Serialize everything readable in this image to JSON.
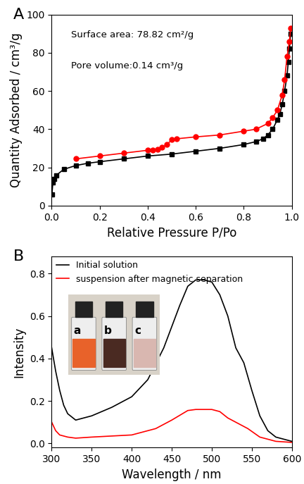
{
  "chart_data": [
    {
      "type": "line",
      "title": "A",
      "x_label": "Relative Pressure P/Po",
      "y_label": "Quantity Adsorbed / cm³/g",
      "annotations": [
        "Surface area: 78.82 cm²/g",
        "Pore volume:0.14 cm³/g"
      ],
      "xlim": [
        0,
        1
      ],
      "ylim": [
        0,
        100
      ],
      "xticks": [
        {
          "value": 0,
          "label": "0.0"
        },
        {
          "value": 0.2,
          "label": "0.2"
        },
        {
          "value": 0.4,
          "label": "0.4"
        },
        {
          "value": 0.6,
          "label": "0.6"
        },
        {
          "value": 0.8,
          "label": "0.8"
        },
        {
          "value": 1,
          "label": "1.0"
        }
      ],
      "yticks": [
        0,
        20,
        40,
        60,
        80,
        100
      ],
      "series": [
        {
          "color": "#000000",
          "marker": "square",
          "line_style": "solid",
          "x": [
            0.001,
            0.005,
            0.01,
            0.02,
            0.05,
            0.1,
            0.15,
            0.2,
            0.3,
            0.4,
            0.5,
            0.6,
            0.7,
            0.8,
            0.85,
            0.88,
            0.9,
            0.92,
            0.94,
            0.95,
            0.96,
            0.97,
            0.98,
            0.985,
            0.99,
            0.995
          ],
          "values": [
            6,
            12,
            14,
            16,
            19,
            21,
            22.2,
            23,
            24.5,
            26,
            27,
            28.5,
            30,
            32,
            33.5,
            35,
            37,
            40,
            45,
            48,
            53,
            60,
            68,
            75,
            82,
            90
          ]
        },
        {
          "color": "#ff0000",
          "marker": "circle",
          "line_style": "solid",
          "x": [
            0.995,
            0.99,
            0.98,
            0.97,
            0.96,
            0.94,
            0.92,
            0.9,
            0.85,
            0.8,
            0.7,
            0.6,
            0.52,
            0.5,
            0.48,
            0.46,
            0.44,
            0.42,
            0.4,
            0.3,
            0.2,
            0.1
          ],
          "values": [
            93,
            86,
            78,
            66,
            58,
            50,
            46,
            43,
            40,
            39,
            37,
            36,
            35,
            34.5,
            32,
            30.5,
            29.5,
            29.2,
            29,
            27.5,
            26,
            24.5
          ]
        }
      ]
    },
    {
      "type": "line",
      "title": "B",
      "x_label": "Wavelength / nm",
      "y_label": "Intensity",
      "annotations": [
        "a",
        "b",
        "c"
      ],
      "legend": "upper left",
      "xlim": [
        300,
        600
      ],
      "ylim": [
        -0.02,
        0.88
      ],
      "xticks": [
        300,
        350,
        400,
        450,
        500,
        550,
        600
      ],
      "yticks": [
        {
          "value": 0,
          "label": "0.0"
        },
        {
          "value": 0.2,
          "label": "0.2"
        },
        {
          "value": 0.4,
          "label": "0.4"
        },
        {
          "value": 0.6,
          "label": "0.6"
        },
        {
          "value": 0.8,
          "label": "0.8"
        }
      ],
      "series": [
        {
          "name": "Initial solution",
          "color": "#000000",
          "line_style": "solid",
          "x": [
            300,
            305,
            310,
            315,
            320,
            330,
            350,
            375,
            400,
            420,
            440,
            460,
            470,
            480,
            490,
            500,
            510,
            520,
            530,
            540,
            550,
            560,
            570,
            580,
            600
          ],
          "values": [
            0.45,
            0.34,
            0.25,
            0.18,
            0.14,
            0.11,
            0.13,
            0.17,
            0.22,
            0.3,
            0.45,
            0.65,
            0.74,
            0.77,
            0.77,
            0.76,
            0.7,
            0.6,
            0.45,
            0.38,
            0.25,
            0.13,
            0.06,
            0.03,
            0.01
          ]
        },
        {
          "name": "suspension after magnetic separation",
          "color": "#ff0000",
          "line_style": "solid",
          "x": [
            300,
            305,
            310,
            320,
            330,
            350,
            400,
            430,
            450,
            470,
            480,
            500,
            510,
            520,
            535,
            545,
            560,
            580,
            600
          ],
          "values": [
            0.1,
            0.06,
            0.04,
            0.03,
            0.025,
            0.03,
            0.04,
            0.07,
            0.11,
            0.155,
            0.16,
            0.16,
            0.15,
            0.12,
            0.09,
            0.07,
            0.03,
            0.01,
            0.005
          ]
        }
      ]
    }
  ]
}
